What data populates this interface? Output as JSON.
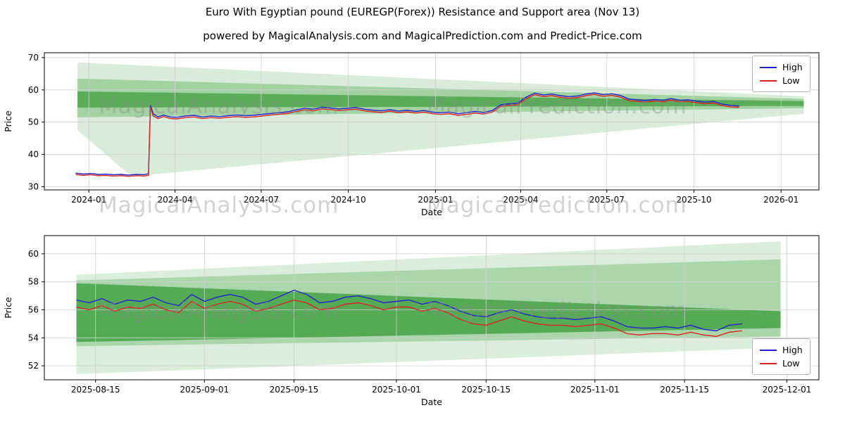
{
  "page": {
    "title": "Euro With Egyptian pound (EUREGP(Forex)) Resistance and Support area (Nov 13)",
    "subtitle": "powered by MagicalAnalysis.com and MagicalPrediction.com and Predict-Price.com"
  },
  "watermarks": {
    "left": "MagicalAnalysis.com",
    "right": "MagicalPrediction.com"
  },
  "colors": {
    "high": "#2222cc",
    "low": "#dd2222",
    "band": "#008000"
  },
  "chart_data": [
    {
      "type": "line",
      "xlabel": "Date",
      "ylabel": "Price",
      "xlim": [
        "2023-11-15",
        "2026-02-10"
      ],
      "ylim": [
        29.0,
        71.5
      ],
      "yticks": [
        30,
        40,
        50,
        60,
        70
      ],
      "xticks": [
        "2024-01-01",
        "2024-04-01",
        "2024-07-01",
        "2024-10-01",
        "2025-01-01",
        "2025-04-01",
        "2025-07-01",
        "2025-10-01",
        "2026-01-01"
      ],
      "xtick_labels": [
        "2024-01",
        "2024-04",
        "2024-07",
        "2024-10",
        "2025-01",
        "2025-04",
        "2025-07",
        "2025-10",
        "2026-01"
      ],
      "legend_position": "upper right",
      "grid": true,
      "bands": [
        {
          "alpha": 0.15,
          "points": [
            [
              "2023-12-20",
              47.5
            ],
            [
              "2023-12-20",
              68.5
            ],
            [
              "2026-01-25",
              58.0
            ],
            [
              "2026-01-25",
              53.8
            ]
          ]
        },
        {
          "alpha": 0.15,
          "points": [
            [
              "2023-12-20",
              47.5
            ],
            [
              "2024-02-15",
              33.2
            ],
            [
              "2026-01-25",
              52.6
            ],
            [
              "2026-01-25",
              53.8
            ]
          ]
        },
        {
          "alpha": 0.25,
          "points": [
            [
              "2023-12-20",
              51.5
            ],
            [
              "2023-12-20",
              63.5
            ],
            [
              "2026-01-25",
              57.2
            ],
            [
              "2026-01-25",
              54.3
            ]
          ]
        },
        {
          "alpha": 0.45,
          "points": [
            [
              "2023-12-20",
              54.5
            ],
            [
              "2023-12-20",
              59.5
            ],
            [
              "2026-01-25",
              56.5
            ],
            [
              "2026-01-25",
              55.0
            ]
          ]
        }
      ],
      "x_dates": [
        "2023-12-18",
        "2023-12-26",
        "2024-01-03",
        "2024-01-11",
        "2024-01-19",
        "2024-01-27",
        "2024-02-04",
        "2024-02-12",
        "2024-02-20",
        "2024-02-28",
        "2024-03-04",
        "2024-03-06",
        "2024-03-09",
        "2024-03-14",
        "2024-03-20",
        "2024-03-27",
        "2024-04-03",
        "2024-04-12",
        "2024-04-21",
        "2024-04-30",
        "2024-05-09",
        "2024-05-18",
        "2024-05-27",
        "2024-06-05",
        "2024-06-14",
        "2024-06-23",
        "2024-07-02",
        "2024-07-11",
        "2024-07-20",
        "2024-07-29",
        "2024-08-07",
        "2024-08-16",
        "2024-08-25",
        "2024-09-03",
        "2024-09-12",
        "2024-09-21",
        "2024-09-30",
        "2024-10-09",
        "2024-10-18",
        "2024-10-27",
        "2024-11-05",
        "2024-11-14",
        "2024-11-23",
        "2024-12-02",
        "2024-12-11",
        "2024-12-20",
        "2024-12-29",
        "2025-01-07",
        "2025-01-16",
        "2025-01-25",
        "2025-02-03",
        "2025-02-12",
        "2025-02-21",
        "2025-03-02",
        "2025-03-11",
        "2025-03-20",
        "2025-03-29",
        "2025-04-07",
        "2025-04-16",
        "2025-04-25",
        "2025-05-04",
        "2025-05-13",
        "2025-05-22",
        "2025-05-31",
        "2025-06-09",
        "2025-06-18",
        "2025-06-27",
        "2025-07-06",
        "2025-07-15",
        "2025-07-24",
        "2025-08-02",
        "2025-08-11",
        "2025-08-20",
        "2025-08-29",
        "2025-09-07",
        "2025-09-16",
        "2025-09-25",
        "2025-10-04",
        "2025-10-13",
        "2025-10-22",
        "2025-10-31",
        "2025-11-09",
        "2025-11-18"
      ],
      "series": [
        {
          "name": "High",
          "color": "#2222cc",
          "values": [
            34.2,
            33.9,
            34.1,
            33.8,
            33.9,
            33.7,
            33.8,
            33.6,
            33.8,
            33.7,
            34.0,
            55.3,
            52.6,
            51.6,
            52.2,
            51.6,
            51.5,
            51.9,
            52.1,
            51.6,
            51.9,
            51.7,
            52.0,
            52.2,
            52.0,
            52.1,
            52.4,
            52.7,
            52.9,
            53.2,
            53.8,
            54.3,
            54.0,
            54.6,
            54.4,
            54.1,
            54.3,
            54.5,
            54.0,
            53.7,
            53.5,
            53.9,
            53.4,
            53.7,
            53.3,
            53.6,
            53.1,
            52.9,
            53.1,
            52.6,
            52.9,
            53.3,
            53.0,
            53.6,
            55.4,
            55.7,
            55.9,
            57.8,
            59.0,
            58.4,
            58.7,
            58.2,
            57.9,
            58.1,
            58.7,
            59.1,
            58.5,
            58.8,
            58.3,
            57.2,
            56.9,
            56.7,
            57.0,
            56.8,
            57.3,
            56.8,
            56.9,
            56.5,
            56.2,
            56.4,
            55.6,
            55.2,
            55.0
          ]
        },
        {
          "name": "Low",
          "color": "#dd2222",
          "values": [
            33.8,
            33.5,
            33.7,
            33.4,
            33.5,
            33.3,
            33.4,
            33.2,
            33.4,
            33.3,
            33.5,
            54.6,
            51.9,
            51.1,
            51.7,
            51.1,
            51.0,
            51.4,
            51.6,
            51.1,
            51.4,
            51.2,
            51.5,
            51.7,
            51.5,
            51.6,
            51.9,
            52.2,
            52.4,
            52.7,
            53.3,
            53.8,
            53.5,
            54.1,
            53.9,
            53.6,
            53.8,
            54.0,
            53.5,
            53.2,
            53.0,
            53.4,
            52.9,
            53.2,
            52.8,
            53.1,
            52.6,
            52.4,
            52.6,
            52.1,
            52.4,
            52.8,
            52.5,
            53.1,
            54.9,
            55.2,
            55.4,
            57.3,
            58.5,
            57.9,
            58.2,
            57.7,
            57.4,
            57.6,
            58.2,
            58.6,
            58.0,
            58.3,
            57.8,
            56.7,
            56.4,
            56.2,
            56.5,
            56.3,
            56.8,
            56.3,
            56.4,
            56.0,
            55.7,
            55.9,
            55.1,
            54.7,
            54.6
          ]
        }
      ]
    },
    {
      "type": "line",
      "xlabel": "Date",
      "ylabel": "Price",
      "xlim": [
        "2025-08-07",
        "2025-12-06"
      ],
      "ylim": [
        51.0,
        61.3
      ],
      "yticks": [
        52,
        54,
        56,
        58,
        60
      ],
      "xticks": [
        "2025-08-15",
        "2025-09-01",
        "2025-09-15",
        "2025-10-01",
        "2025-10-15",
        "2025-11-01",
        "2025-11-15",
        "2025-12-01"
      ],
      "xtick_labels": [
        "2025-08-15",
        "2025-09-01",
        "2025-09-15",
        "2025-10-01",
        "2025-10-15",
        "2025-11-01",
        "2025-11-15",
        "2025-12-01"
      ],
      "legend_position": "lower right",
      "grid": true,
      "bands": [
        {
          "alpha": 0.14,
          "points": [
            [
              "2025-08-12",
              51.4
            ],
            [
              "2025-08-12",
              58.5
            ],
            [
              "2025-11-30",
              60.9
            ],
            [
              "2025-11-30",
              53.3
            ]
          ]
        },
        {
          "alpha": 0.22,
          "points": [
            [
              "2025-08-12",
              53.4
            ],
            [
              "2025-08-12",
              58.1
            ],
            [
              "2025-11-30",
              59.6
            ],
            [
              "2025-11-30",
              54.1
            ]
          ]
        },
        {
          "alpha": 0.5,
          "points": [
            [
              "2025-08-12",
              53.7
            ],
            [
              "2025-08-12",
              57.9
            ],
            [
              "2025-11-30",
              55.9
            ],
            [
              "2025-11-30",
              54.7
            ]
          ]
        }
      ],
      "x_dates": [
        "2025-08-12",
        "2025-08-14",
        "2025-08-16",
        "2025-08-18",
        "2025-08-20",
        "2025-08-22",
        "2025-08-24",
        "2025-08-26",
        "2025-08-28",
        "2025-08-30",
        "2025-09-01",
        "2025-09-03",
        "2025-09-05",
        "2025-09-07",
        "2025-09-09",
        "2025-09-11",
        "2025-09-13",
        "2025-09-15",
        "2025-09-17",
        "2025-09-19",
        "2025-09-21",
        "2025-09-23",
        "2025-09-25",
        "2025-09-27",
        "2025-09-29",
        "2025-10-01",
        "2025-10-03",
        "2025-10-05",
        "2025-10-07",
        "2025-10-09",
        "2025-10-11",
        "2025-10-13",
        "2025-10-15",
        "2025-10-17",
        "2025-10-19",
        "2025-10-21",
        "2025-10-23",
        "2025-10-25",
        "2025-10-27",
        "2025-10-29",
        "2025-10-31",
        "2025-11-02",
        "2025-11-04",
        "2025-11-06",
        "2025-11-08",
        "2025-11-10",
        "2025-11-12",
        "2025-11-14",
        "2025-11-16",
        "2025-11-18",
        "2025-11-20",
        "2025-11-22",
        "2025-11-24"
      ],
      "series": [
        {
          "name": "High",
          "color": "#2222cc",
          "values": [
            56.7,
            56.5,
            56.8,
            56.4,
            56.7,
            56.6,
            56.9,
            56.5,
            56.3,
            57.1,
            56.6,
            56.9,
            57.1,
            56.9,
            56.4,
            56.6,
            57.0,
            57.4,
            57.1,
            56.5,
            56.6,
            56.9,
            57.0,
            56.8,
            56.5,
            56.6,
            56.7,
            56.4,
            56.6,
            56.3,
            55.9,
            55.6,
            55.5,
            55.8,
            56.0,
            55.7,
            55.5,
            55.4,
            55.4,
            55.3,
            55.4,
            55.5,
            55.2,
            54.8,
            54.7,
            54.7,
            54.8,
            54.7,
            54.9,
            54.6,
            54.5,
            54.9,
            55.0
          ]
        },
        {
          "name": "Low",
          "color": "#dd2222",
          "values": [
            56.2,
            56.0,
            56.3,
            55.9,
            56.2,
            56.1,
            56.4,
            56.0,
            55.8,
            56.6,
            56.1,
            56.4,
            56.6,
            56.4,
            55.9,
            56.1,
            56.4,
            56.7,
            56.5,
            56.0,
            56.1,
            56.4,
            56.5,
            56.3,
            56.0,
            56.2,
            56.2,
            55.9,
            56.1,
            55.8,
            55.3,
            55.0,
            54.9,
            55.2,
            55.5,
            55.2,
            55.0,
            54.9,
            54.9,
            54.8,
            54.9,
            55.0,
            54.7,
            54.3,
            54.2,
            54.3,
            54.3,
            54.2,
            54.4,
            54.2,
            54.1,
            54.4,
            54.5
          ]
        }
      ]
    }
  ]
}
